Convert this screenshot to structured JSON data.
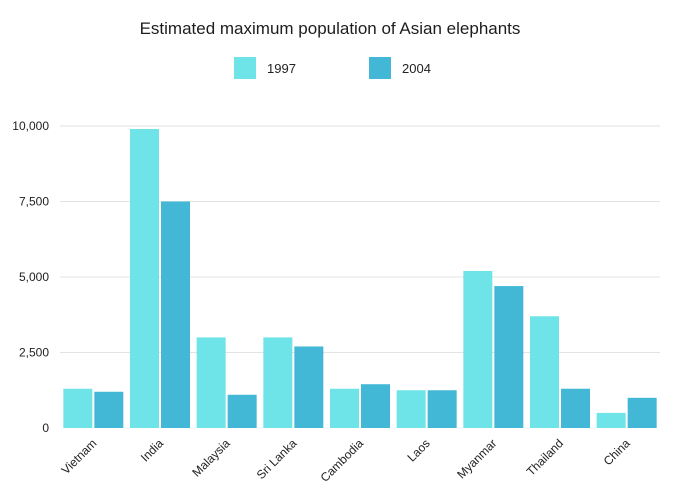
{
  "chart_data": {
    "type": "bar",
    "title": "Estimated maximum population of Asian elephants",
    "xlabel": "",
    "ylabel": "",
    "categories": [
      "Vietnam",
      "India",
      "Malaysia",
      "Sri Lanka",
      "Cambodia",
      "Laos",
      "Myanmar",
      "Thailand",
      "China"
    ],
    "series": [
      {
        "name": "1997",
        "color": "#6fe4e8",
        "values": [
          1300,
          9900,
          3000,
          3000,
          1300,
          1250,
          5200,
          3700,
          500
        ]
      },
      {
        "name": "2004",
        "color": "#42b8d6",
        "values": [
          1200,
          7500,
          1100,
          2700,
          1450,
          1250,
          4700,
          1300,
          1000
        ]
      }
    ],
    "ylim": [
      0,
      10000
    ],
    "yticks": [
      0,
      2500,
      5000,
      7500,
      10000
    ],
    "ytick_labels": [
      "0",
      "2,500",
      "5,000",
      "7,500",
      "10,000"
    ],
    "grid": true,
    "legend_position": "top-center"
  }
}
